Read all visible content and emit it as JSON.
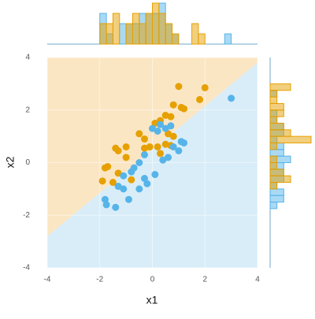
{
  "chart_data": {
    "type": "scatter",
    "x_label": "x1",
    "y_label": "x2",
    "xlim": [
      -4,
      4
    ],
    "ylim": [
      -4,
      4
    ],
    "xticks": [
      -4,
      -2,
      0,
      2,
      4
    ],
    "yticks": [
      -4,
      -2,
      0,
      2,
      4
    ],
    "grid": true,
    "boundary": {
      "x": [
        -4,
        4
      ],
      "y": [
        -2.8,
        3.8
      ]
    },
    "region_colors": {
      "above": "#fbe6c4",
      "below": "#d9edf8"
    },
    "series": [
      {
        "color": "#e6a000",
        "x": [
          1.0,
          2.0,
          1.8,
          0.8,
          1.1,
          1.2,
          0.5,
          0.7,
          0.3,
          0.1,
          -0.5,
          0.6,
          -0.3,
          0.8,
          0.5,
          0.2,
          -0.1,
          -0.3,
          -1.0,
          -1.4,
          -1.3,
          0.3,
          0.7,
          -1.0,
          -1.8,
          -1.7,
          -1.3,
          -1.9,
          -0.8,
          -1.5
        ],
        "values": [
          2.9,
          2.85,
          2.4,
          2.2,
          2.1,
          2.05,
          1.8,
          1.75,
          1.6,
          1.5,
          1.1,
          1.1,
          0.9,
          1.0,
          0.7,
          0.6,
          0.6,
          0.55,
          0.6,
          0.55,
          0.45,
          0.35,
          0.65,
          0.2,
          -0.2,
          -0.15,
          -0.4,
          -0.7,
          -0.65,
          -0.75
        ]
      },
      {
        "color": "#56b4e9",
        "x": [
          3.0,
          0.7,
          0.3,
          0.5,
          0.2,
          0.0,
          0.8,
          1.1,
          1.2,
          1.0,
          0.6,
          0.4,
          -0.3,
          -0.5,
          -0.7,
          -0.8,
          -0.3,
          0.1,
          -0.2,
          -1.1,
          -1.3,
          -1.1,
          -0.5,
          -0.9,
          -1.8,
          -1.75,
          -1.4
        ],
        "values": [
          2.45,
          1.4,
          1.45,
          1.3,
          1.2,
          1.3,
          0.6,
          0.8,
          0.75,
          0.45,
          0.2,
          0.1,
          0.3,
          0.0,
          -0.2,
          -0.35,
          -0.6,
          -0.45,
          -0.8,
          -0.5,
          -0.9,
          -1.0,
          -1.0,
          -1.4,
          -1.4,
          -1.6,
          -1.7
        ]
      }
    ],
    "marginal_x": {
      "type": "histogram",
      "bins": [
        -2,
        -1.75,
        -1.5,
        -1.25,
        -1,
        -0.75,
        -0.5,
        -0.25,
        0,
        0.25,
        0.5,
        0.75,
        1,
        1.25,
        1.5,
        1.75,
        2,
        2.25,
        2.5,
        2.75,
        3,
        3.25
      ],
      "series": [
        {
          "color": "#56b4e9",
          "values": [
            3,
            1,
            0,
            2,
            2,
            2,
            3,
            3,
            3,
            4,
            2,
            1,
            0,
            0,
            0,
            0,
            0,
            0,
            0,
            1,
            0
          ]
        },
        {
          "color": "#e6a000",
          "values": [
            2,
            2,
            3,
            0,
            2,
            3,
            2,
            3,
            4,
            3,
            2,
            1,
            0,
            0,
            2,
            1,
            0,
            0,
            0,
            0,
            0
          ]
        }
      ]
    },
    "marginal_y": {
      "type": "histogram",
      "bins": [
        -1.75,
        -1.5,
        -1.25,
        -1,
        -0.75,
        -0.5,
        -0.25,
        0,
        0.25,
        0.5,
        0.75,
        1,
        1.25,
        1.5,
        1.75,
        2,
        2.25,
        2.5,
        2.75,
        3
      ],
      "series": [
        {
          "color": "#56b4e9",
          "values": [
            1,
            2,
            2,
            1,
            2,
            2,
            2,
            3,
            2,
            2,
            1,
            2,
            2,
            1,
            1,
            0,
            0,
            1,
            0
          ]
        },
        {
          "color": "#e6a000",
          "values": [
            0,
            0,
            0,
            1,
            3,
            2,
            1,
            1,
            0,
            1,
            6,
            3,
            2,
            1,
            2,
            2,
            1,
            1,
            3
          ]
        }
      ]
    }
  }
}
